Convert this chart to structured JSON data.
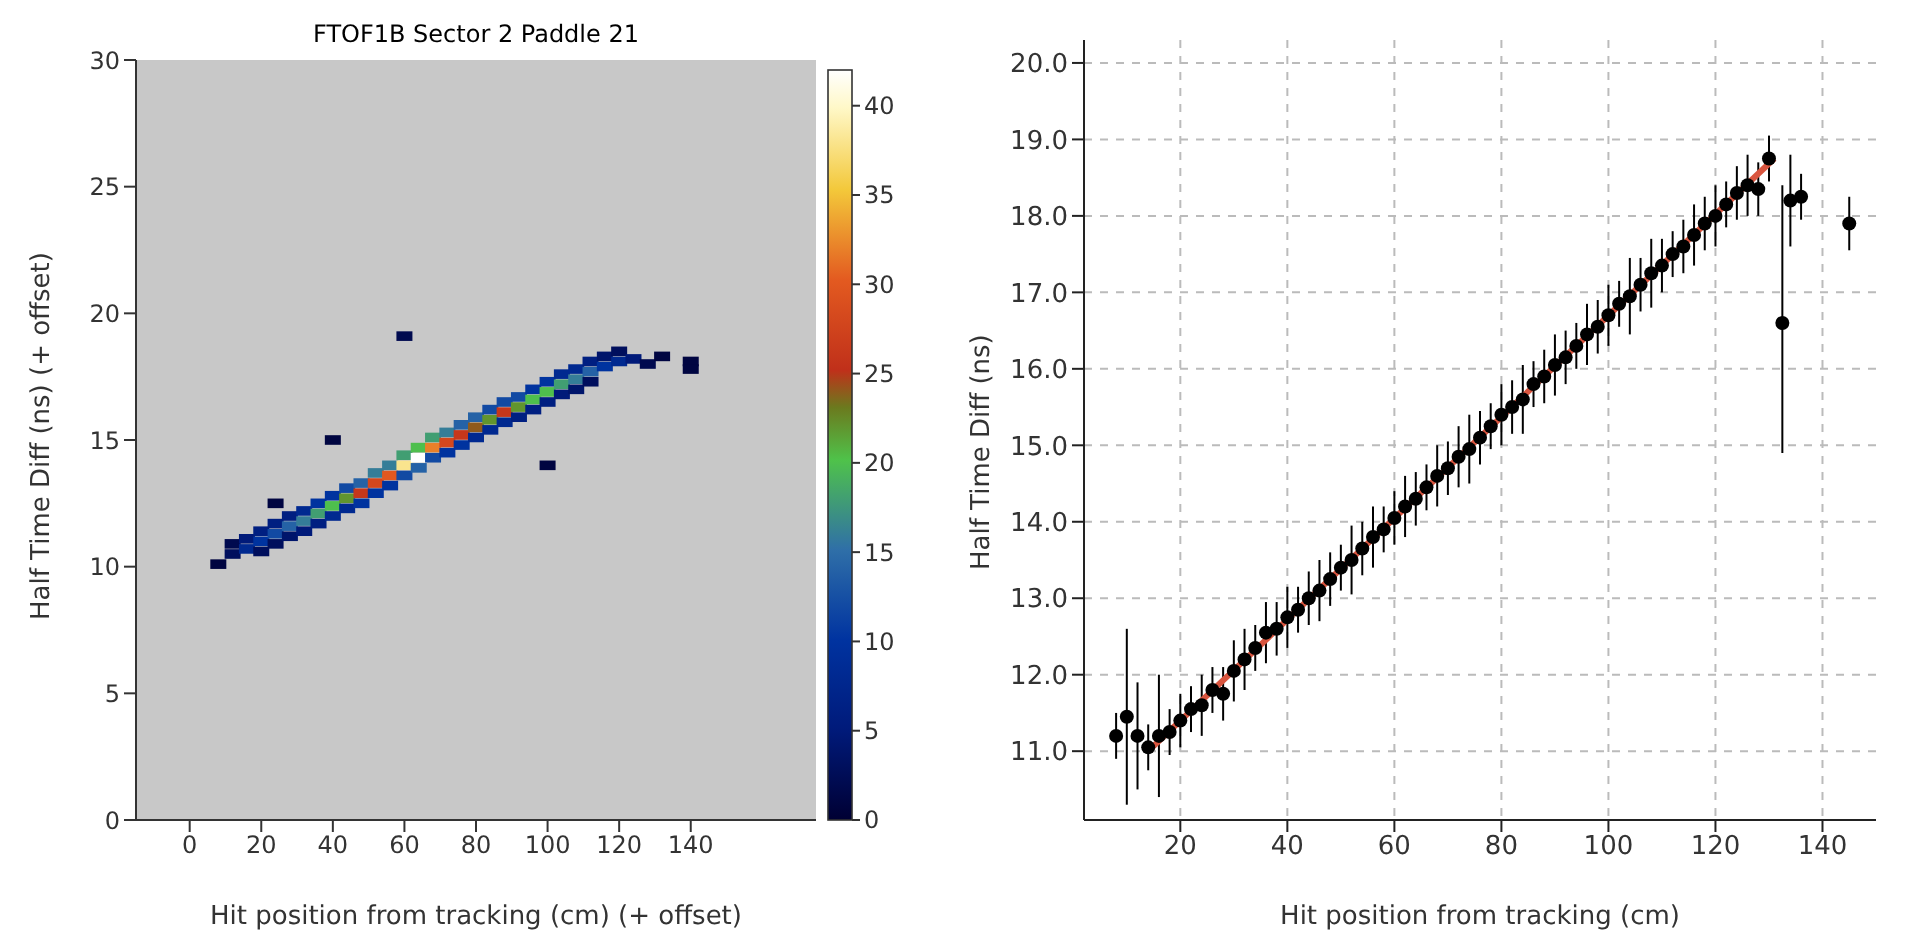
{
  "chart_data": [
    {
      "type": "scatter",
      "title": "FTOF1B Sector 2 Paddle 21",
      "xlabel": "Hit position from tracking (cm) (+ offset)",
      "ylabel": "Half Time Diff (ns) (+ offset)",
      "marker": "square",
      "xlim": [
        -15,
        175
      ],
      "ylim": [
        0,
        30
      ],
      "xticks": [
        0,
        20,
        40,
        60,
        80,
        100,
        120,
        140
      ],
      "yticks": [
        0,
        5,
        10,
        15,
        20,
        25,
        30
      ],
      "clim": [
        0,
        42
      ],
      "cticks": [
        0,
        5,
        10,
        15,
        20,
        25,
        30,
        35,
        40
      ],
      "x": [
        8,
        12,
        12,
        16,
        16,
        20,
        20,
        20,
        24,
        24,
        24,
        28,
        28,
        28,
        32,
        32,
        32,
        36,
        36,
        36,
        40,
        40,
        40,
        44,
        44,
        44,
        48,
        48,
        48,
        52,
        52,
        52,
        56,
        56,
        56,
        60,
        60,
        60,
        64,
        64,
        64,
        68,
        68,
        68,
        72,
        72,
        72,
        76,
        76,
        76,
        80,
        80,
        80,
        84,
        84,
        84,
        88,
        88,
        88,
        92,
        92,
        92,
        96,
        96,
        96,
        100,
        100,
        100,
        104,
        104,
        104,
        108,
        108,
        108,
        112,
        112,
        112,
        116,
        116,
        120,
        120,
        124,
        128,
        132,
        140,
        140,
        60,
        24,
        40,
        100
      ],
      "values": [
        10.1,
        10.5,
        10.9,
        10.7,
        11.1,
        11.0,
        11.4,
        10.6,
        11.3,
        11.7,
        10.9,
        11.6,
        12.0,
        11.2,
        11.8,
        12.2,
        11.4,
        12.1,
        12.5,
        11.7,
        12.4,
        12.8,
        12.0,
        12.7,
        13.1,
        12.3,
        12.9,
        13.3,
        12.5,
        13.3,
        13.7,
        12.9,
        13.6,
        14.0,
        13.2,
        14.0,
        14.4,
        13.6,
        14.3,
        14.7,
        13.9,
        14.7,
        15.1,
        14.3,
        14.9,
        15.3,
        14.5,
        15.2,
        15.6,
        14.8,
        15.5,
        15.9,
        15.1,
        15.8,
        16.2,
        15.4,
        16.1,
        16.5,
        15.7,
        16.3,
        16.7,
        15.9,
        16.6,
        17.0,
        16.2,
        16.9,
        17.3,
        16.5,
        17.2,
        17.6,
        16.8,
        17.4,
        17.8,
        17.0,
        17.7,
        18.1,
        17.3,
        17.9,
        18.3,
        18.1,
        18.5,
        18.2,
        18.0,
        18.3,
        18.1,
        17.8,
        19.1,
        12.5,
        15.0,
        14.0
      ],
      "cvalues": [
        1,
        3,
        2,
        8,
        5,
        10,
        6,
        3,
        12,
        6,
        3,
        14,
        6,
        4,
        16,
        8,
        5,
        18,
        10,
        6,
        20,
        10,
        8,
        22,
        12,
        8,
        26,
        14,
        10,
        28,
        16,
        10,
        30,
        16,
        10,
        38,
        18,
        12,
        42,
        20,
        14,
        32,
        18,
        12,
        28,
        16,
        10,
        26,
        14,
        10,
        24,
        14,
        8,
        22,
        12,
        8,
        26,
        12,
        8,
        22,
        12,
        6,
        20,
        10,
        6,
        20,
        10,
        6,
        18,
        8,
        5,
        16,
        8,
        4,
        14,
        6,
        3,
        10,
        4,
        8,
        3,
        5,
        2,
        1,
        1,
        1,
        2,
        1,
        1,
        1
      ]
    },
    {
      "type": "scatter",
      "xlabel": "Hit position from tracking (cm)",
      "ylabel": "Half Time Diff (ns)",
      "grid": true,
      "xlim": [
        2,
        150
      ],
      "ylim": [
        10.1,
        20.3
      ],
      "xticks": [
        20,
        40,
        60,
        80,
        100,
        120,
        140
      ],
      "yticks": [
        {
          "value": 11,
          "label": "11.0"
        },
        {
          "value": 12,
          "label": "12.0"
        },
        {
          "value": 13,
          "label": "13.0"
        },
        {
          "value": 14,
          "label": "14.0"
        },
        {
          "value": 15,
          "label": "15.0"
        },
        {
          "value": 16,
          "label": "16.0"
        },
        {
          "value": 17,
          "label": "17.0"
        },
        {
          "value": 18,
          "label": "18.0"
        },
        {
          "value": 19,
          "label": "19.0"
        },
        {
          "value": 20,
          "label": "20.0"
        }
      ],
      "series": [
        {
          "type": "scatter",
          "marker": "circle",
          "color": "#000000",
          "x": [
            8,
            10,
            12,
            14,
            16,
            18,
            20,
            22,
            24,
            26,
            28,
            30,
            32,
            34,
            36,
            38,
            40,
            42,
            44,
            46,
            48,
            50,
            52,
            54,
            56,
            58,
            60,
            62,
            64,
            66,
            68,
            70,
            72,
            74,
            76,
            78,
            80,
            82,
            84,
            86,
            88,
            90,
            92,
            94,
            96,
            98,
            100,
            102,
            104,
            106,
            108,
            110,
            112,
            114,
            116,
            118,
            120,
            122,
            124,
            126,
            128,
            130,
            132.5,
            134,
            136,
            145
          ],
          "values": [
            11.2,
            11.45,
            11.2,
            11.05,
            11.2,
            11.25,
            11.4,
            11.55,
            11.6,
            11.8,
            11.75,
            12.05,
            12.2,
            12.35,
            12.55,
            12.6,
            12.75,
            12.85,
            13.0,
            13.1,
            13.25,
            13.4,
            13.5,
            13.65,
            13.8,
            13.9,
            14.05,
            14.2,
            14.3,
            14.45,
            14.6,
            14.7,
            14.85,
            14.95,
            15.1,
            15.25,
            15.4,
            15.5,
            15.6,
            15.8,
            15.9,
            16.05,
            16.15,
            16.3,
            16.45,
            16.55,
            16.7,
            16.85,
            16.95,
            17.1,
            17.25,
            17.35,
            17.5,
            17.6,
            17.75,
            17.9,
            18.0,
            18.15,
            18.3,
            18.4,
            18.35,
            18.75,
            16.6,
            18.2,
            18.25,
            17.9
          ],
          "errors": [
            0.3,
            [
              10.3,
              12.6
            ],
            0.7,
            0.3,
            0.8,
            0.3,
            0.35,
            0.3,
            0.4,
            0.3,
            0.35,
            0.4,
            0.4,
            0.3,
            0.4,
            0.35,
            0.4,
            0.3,
            0.35,
            0.4,
            0.35,
            0.3,
            0.45,
            0.35,
            0.4,
            0.3,
            0.35,
            0.4,
            0.35,
            0.3,
            0.4,
            0.35,
            0.4,
            0.45,
            0.35,
            0.3,
            0.4,
            0.35,
            0.45,
            0.3,
            0.35,
            0.4,
            0.35,
            0.3,
            0.4,
            0.35,
            0.4,
            0.3,
            0.5,
            0.35,
            0.45,
            0.35,
            0.3,
            0.35,
            0.4,
            0.35,
            0.4,
            0.3,
            0.35,
            0.4,
            0.35,
            0.3,
            [
              14.9,
              18.4
            ],
            0.6,
            0.3,
            0.35
          ]
        },
        {
          "type": "line",
          "marker": "none",
          "color": "#d9553f",
          "x": [
            14,
            131
          ],
          "values": [
            11.0,
            18.75
          ]
        }
      ]
    }
  ]
}
